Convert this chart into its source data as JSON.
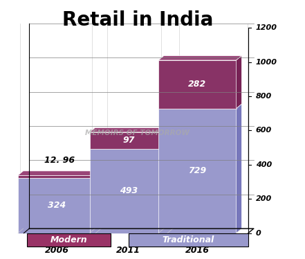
{
  "title": "Retail in India",
  "years": [
    "2006",
    "2011",
    "2016"
  ],
  "traditional": [
    324,
    493,
    729
  ],
  "modern": [
    12.96,
    97,
    282
  ],
  "traditional_color_front": "#9999cc",
  "traditional_color_top": "#aaaadd",
  "traditional_color_side": "#7777bb",
  "modern_color_front": "#883366",
  "modern_color_top": "#994477",
  "modern_color_side": "#772255",
  "legend_modern_color": "#993366",
  "legend_trad_color": "#9999cc",
  "traditional_label": "Traditional",
  "modern_label": "Modern",
  "ylim": [
    0,
    1200
  ],
  "yticks": [
    0,
    200,
    400,
    600,
    800,
    1000,
    1200
  ],
  "bar_labels_traditional": [
    "324",
    "493",
    "729"
  ],
  "bar_labels_modern": [
    "12. 96",
    "97",
    "282"
  ],
  "watermark": "MEMOIRS OF TOMORROW",
  "title_fontsize": 20,
  "bar_label_fontsize": 9,
  "modern_label_above": true
}
